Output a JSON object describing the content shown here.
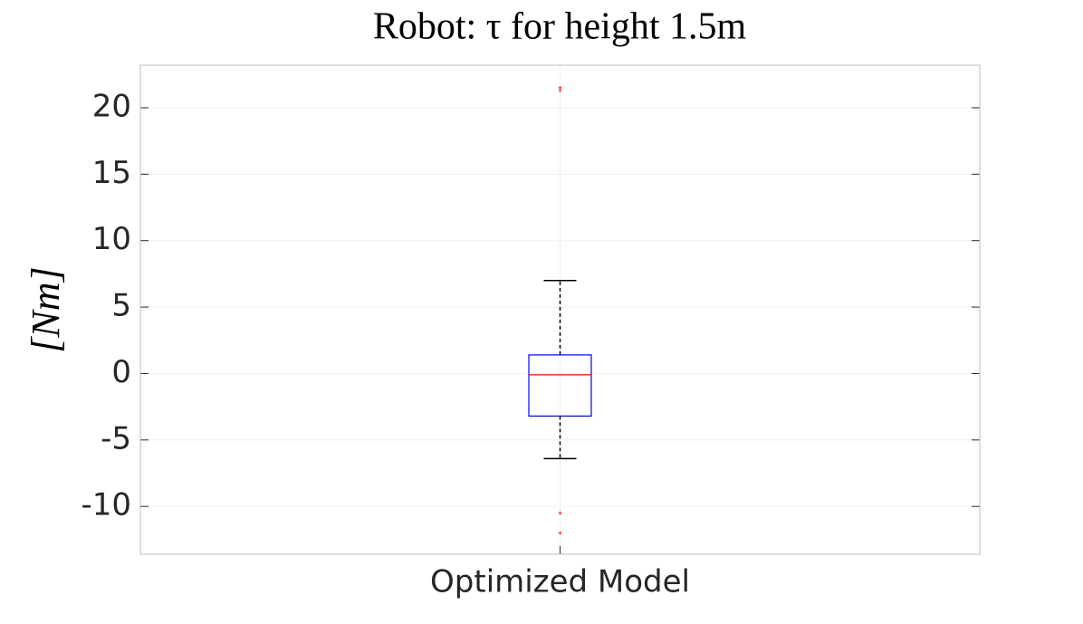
{
  "chart_data": {
    "type": "box",
    "title": "Robot: τ for height 1.5m",
    "y_label": "[Nm]",
    "categories": [
      "Optimized Model"
    ],
    "boxes": [
      {
        "min": -6.4,
        "q1": -3.2,
        "median": -0.1,
        "q3": 1.4,
        "max": 7.0,
        "outliers": [
          21.5,
          21.3,
          -10.5,
          -12.0
        ]
      }
    ],
    "box_color": "#0000ff",
    "median_color": "#ff0000",
    "whisker_color": "#000000",
    "outlier_color": "#ff0000",
    "ylim": [
      -13.6,
      23.2
    ],
    "yticks": [
      -10,
      -5,
      0,
      5,
      10,
      15,
      20
    ],
    "grid": true
  }
}
